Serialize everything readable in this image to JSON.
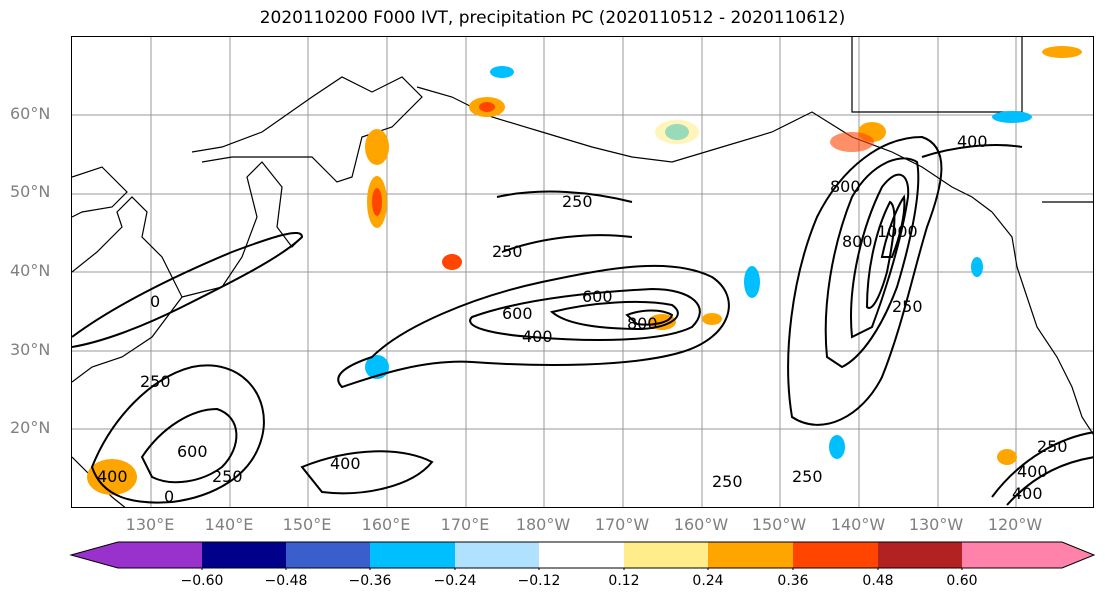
{
  "title": "2020110200 F000 IVT, precipitation PC (2020110512 - 2020110612)",
  "map": {
    "lat_labels": [
      "60°N",
      "50°N",
      "40°N",
      "30°N",
      "20°N"
    ],
    "lon_labels": [
      "130°E",
      "140°E",
      "150°E",
      "160°E",
      "170°E",
      "180°W",
      "170°W",
      "160°W",
      "150°W",
      "140°W",
      "130°W",
      "120°W"
    ],
    "contour_labels": [
      "250",
      "250",
      "250",
      "250",
      "250",
      "250",
      "250",
      "250",
      "400",
      "400",
      "400",
      "400",
      "400",
      "400",
      "600",
      "600",
      "600",
      "800",
      "800",
      "800",
      "1000",
      "0",
      "0"
    ],
    "contour_levels": [
      250,
      400,
      600,
      800,
      1000
    ]
  },
  "colorbar": {
    "ticks": [
      "−0.60",
      "−0.48",
      "−0.36",
      "−0.24",
      "−0.12",
      "0.12",
      "0.24",
      "0.36",
      "0.48",
      "0.60"
    ],
    "colors": [
      "#9932cc",
      "#00008b",
      "#3a5fcd",
      "#00bfff",
      "#b0e2ff",
      "#ffffff",
      "#ffec8b",
      "#ffa500",
      "#ff4500",
      "#b22222",
      "#ff82ab"
    ]
  }
}
